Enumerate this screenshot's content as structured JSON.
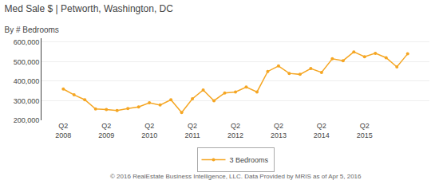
{
  "chart_data": {
    "type": "line",
    "title": "Med Sale $ | Petworth, Washington, DC",
    "subtitle": "By # Bedrooms",
    "footer": "© 2016 RealEstate Business Intelligence, LLC. Data Provided by MRIS as of Apr 5, 2016",
    "categories": [
      "Q2\n2008",
      null,
      null,
      null,
      "Q2\n2009",
      null,
      null,
      null,
      "Q2\n2010",
      null,
      null,
      null,
      "Q2\n2011",
      null,
      null,
      null,
      "Q2\n2012",
      null,
      null,
      null,
      "Q2\n2013",
      null,
      null,
      null,
      "Q2\n2014",
      null,
      null,
      null,
      "Q2\n2015",
      null,
      null,
      null,
      null
    ],
    "series": [
      {
        "name": "3 Bedrooms",
        "color": "#F5A623",
        "marker": "circle",
        "values": [
          360000,
          330000,
          305000,
          258000,
          255000,
          250000,
          260000,
          268000,
          290000,
          278000,
          305000,
          240000,
          310000,
          355000,
          300000,
          340000,
          345000,
          370000,
          345000,
          450000,
          478000,
          440000,
          435000,
          465000,
          445000,
          515000,
          505000,
          550000,
          525000,
          543000,
          520000,
          473000,
          540000
        ]
      }
    ],
    "ylim": [
      200000,
      620000
    ],
    "yticks": [
      {
        "value": 200000,
        "label": "200,000"
      },
      {
        "value": 300000,
        "label": "300,000"
      },
      {
        "value": 400000,
        "label": "400,000"
      },
      {
        "value": 500000,
        "label": "500,000"
      },
      {
        "value": 600000,
        "label": "600,000"
      }
    ],
    "grid": true,
    "legend": "bottom"
  }
}
